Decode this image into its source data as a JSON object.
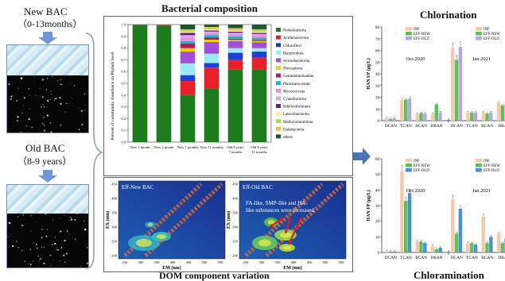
{
  "left": {
    "new_bac": "New BAC",
    "new_bac_age": "（0-13months）",
    "old_bac": "Old BAC",
    "old_bac_age": "（8-9 years）"
  },
  "composition": {
    "title": "Bacterial composition",
    "ylabel": "Percent of community abundance on Phylum level",
    "legend": [
      "Proteobacteria",
      "Acidobacteriota",
      "Chloroflexi",
      "Bacteroidota",
      "Actinobacteriota",
      "Nitrospirota",
      "Gemmatimonadota",
      "Planctomycetota",
      "Myxococcota",
      "Cyanobacteria",
      "Bdellovibrionota",
      "Latescibacterota",
      "Methylomirabilota",
      "Dadabacteria",
      "others"
    ],
    "categories": [
      "New 1 month",
      "New 2 month",
      "New 7 months",
      "New 11 months",
      "Old 8 years\n7 months",
      "Old 8 years\n11 months"
    ]
  },
  "dom": {
    "title": "DOM component variation",
    "left_label": "Eff-New BAC",
    "right_label": "Eff-Old BAC",
    "annotation": "FA-like, SMP-like and HA-like substances were increased",
    "xlabel": "EM (nm)",
    "ylabel": "EX (nm)",
    "x_ticks": [
      "250",
      "300",
      "350",
      "400",
      "450",
      "500",
      "550"
    ],
    "y_ticks": [
      "200",
      "250",
      "300",
      "350",
      "400",
      "450"
    ]
  },
  "chlorination": {
    "title": "Chlorination",
    "ylabel": "HAN FP (μg/L)",
    "y_ticks": [
      "0",
      "10",
      "20",
      "30",
      "40",
      "50",
      "60",
      "70",
      "80"
    ],
    "legend": [
      "INF",
      "EFF-NEW",
      "EFF-OLD"
    ],
    "period1": "Oct.2020",
    "period2": "Jan.2021",
    "x_labels": [
      "DCAN",
      "TCAN",
      "BCAN",
      "DBAN",
      "DCAN",
      "TCAN",
      "BCAN",
      "DBA"
    ]
  },
  "chloramination": {
    "title": "Chloramination",
    "ylabel": "HAN FP (μg/L)",
    "y_ticks": [
      "0",
      "10",
      "20",
      "30",
      "40",
      "50",
      "60"
    ],
    "legend": [
      "INF",
      "EFF-NEW",
      "EFF-OLD"
    ],
    "period1": "Oct.2020",
    "period2": "Jan.2021",
    "x_labels": [
      "DCAN",
      "TCAN",
      "BCAN",
      "DBAN",
      "DCAN",
      "TCAN",
      "BCAN",
      "DBA"
    ]
  },
  "chart_data": [
    {
      "type": "bar",
      "title": "Bacterial composition",
      "ylabel": "Percent of community abundance on Phylum level",
      "ylim": [
        0,
        1
      ],
      "categories": [
        "New 1 month",
        "New 2 month",
        "New 7 months",
        "New 11 months",
        "Old 8 years 7 months",
        "Old 8 years 11 months"
      ],
      "series": [
        {
          "name": "Proteobacteria",
          "color": "#1d7a1d",
          "values": [
            0.995,
            0.99,
            0.4,
            0.46,
            0.62,
            0.62
          ]
        },
        {
          "name": "Acidobacteriota",
          "color": "#e8202a",
          "values": [
            0.002,
            0.003,
            0.12,
            0.18,
            0.08,
            0.1
          ]
        },
        {
          "name": "Chloroflexi",
          "color": "#1f3fd6",
          "values": [
            0.001,
            0.002,
            0.05,
            0.04,
            0.06,
            0.05
          ]
        },
        {
          "name": "Bacteroidota",
          "color": "#9aeaf2",
          "values": [
            0,
            0.001,
            0.1,
            0.08,
            0.04,
            0.03
          ]
        },
        {
          "name": "Actinobacteriota",
          "color": "#a04fd6",
          "values": [
            0,
            0.001,
            0.1,
            0.1,
            0.06,
            0.05
          ]
        },
        {
          "name": "Nitrospirota",
          "color": "#f0d400",
          "values": [
            0,
            0,
            0.03,
            0.02,
            0.01,
            0.01
          ]
        },
        {
          "name": "Gemmatimonadota",
          "color": "#b31c5c",
          "values": [
            0,
            0,
            0.04,
            0.02,
            0.01,
            0.01
          ]
        },
        {
          "name": "Planctomycetota",
          "color": "#2ab0c8",
          "values": [
            0,
            0,
            0.02,
            0.02,
            0.02,
            0.02
          ]
        },
        {
          "name": "Myxococcota",
          "color": "#f08ad8",
          "values": [
            0,
            0,
            0.03,
            0.02,
            0.02,
            0.02
          ]
        },
        {
          "name": "Cyanobacteria",
          "color": "#d9a8f2",
          "values": [
            0,
            0,
            0.02,
            0.01,
            0.01,
            0.01
          ]
        },
        {
          "name": "Bdellovibrionota",
          "color": "#6b1b8a",
          "values": [
            0,
            0,
            0.02,
            0.01,
            0.01,
            0.01
          ]
        },
        {
          "name": "Latescibacterota",
          "color": "#f4ef9a",
          "values": [
            0,
            0,
            0.01,
            0.01,
            0.01,
            0.01
          ]
        },
        {
          "name": "Methylomirabilota",
          "color": "#a8d84a",
          "values": [
            0,
            0,
            0.01,
            0.01,
            0.01,
            0.01
          ]
        },
        {
          "name": "Dadabacteria",
          "color": "#f0bf4e",
          "values": [
            0,
            0,
            0.01,
            0.01,
            0.01,
            0.01
          ]
        },
        {
          "name": "others",
          "color": "#1c5a2a",
          "values": [
            0.002,
            0.003,
            0.04,
            0.02,
            0.03,
            0.04
          ]
        }
      ]
    },
    {
      "type": "bar",
      "title": "Chlorination",
      "ylabel": "HAN FP (μg/L)",
      "ylim": [
        0,
        80
      ],
      "categories": [
        "DCAN",
        "TCAN",
        "BCAN",
        "DBAN",
        "DCAN",
        "TCAN",
        "BCAN",
        "DBA"
      ],
      "series": [
        {
          "name": "INF",
          "color": "#f7c9a8",
          "values": [
            2,
            18,
            6,
            6,
            62,
            7,
            7,
            15
          ]
        },
        {
          "name": "EFF-NEW",
          "color": "#5cc05c",
          "values": [
            1.5,
            18,
            6.5,
            14,
            52,
            7,
            6,
            13
          ]
        },
        {
          "name": "EFF-OLD",
          "color": "#b7a6e6",
          "values": [
            2,
            19,
            6,
            7,
            63,
            7,
            7,
            14
          ]
        }
      ]
    },
    {
      "type": "bar",
      "title": "Chloramination",
      "ylabel": "HAN FP (μg/L)",
      "ylim": [
        0,
        60
      ],
      "categories": [
        "DCAN",
        "TCAN",
        "BCAN",
        "DBAN",
        "DCAN",
        "TCAN",
        "BCAN",
        "DBA"
      ],
      "series": [
        {
          "name": "INF",
          "color": "#f7c9a8",
          "values": [
            0.5,
            52,
            7,
            4,
            34,
            6,
            23,
            12
          ]
        },
        {
          "name": "EFF-NEW",
          "color": "#5cc05c",
          "values": [
            0.5,
            33,
            7,
            2,
            12,
            6,
            6,
            6
          ]
        },
        {
          "name": "EFF-OLD",
          "color": "#4a8fd8",
          "values": [
            0.5,
            38,
            6,
            3,
            28,
            5,
            10,
            9
          ]
        }
      ]
    }
  ]
}
